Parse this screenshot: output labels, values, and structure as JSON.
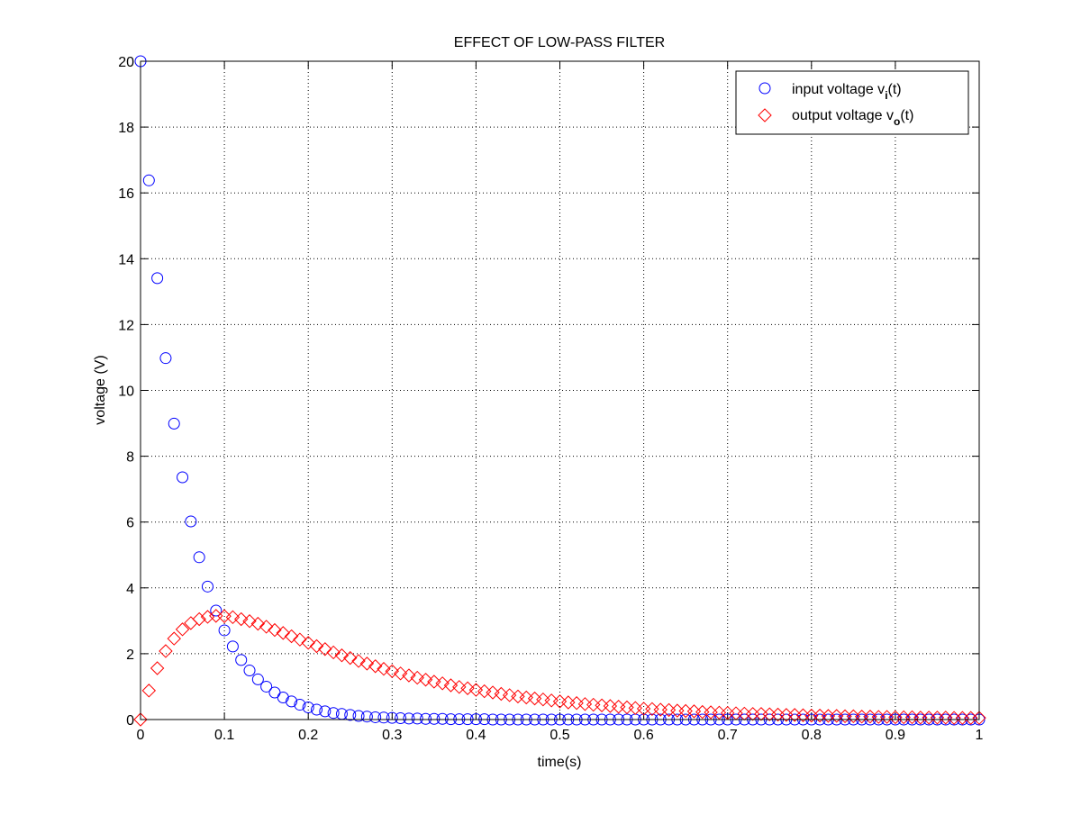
{
  "chart_data": {
    "type": "scatter",
    "title": "EFFECT OF LOW-PASS FILTER",
    "xlabel": "time(s)",
    "ylabel": "voltage (V)",
    "xlim": [
      0,
      1
    ],
    "ylim": [
      0,
      20
    ],
    "grid": true,
    "legend_position": "top-right",
    "xticks": [
      "0",
      "0.1",
      "0.2",
      "0.3",
      "0.4",
      "0.5",
      "0.6",
      "0.7",
      "0.8",
      "0.9",
      "1"
    ],
    "yticks": [
      "0",
      "2",
      "4",
      "6",
      "8",
      "10",
      "12",
      "14",
      "16",
      "18",
      "20"
    ],
    "x_step": 0.01,
    "series": [
      {
        "name": "input voltage v_i(t)",
        "legend": {
          "main": "input voltage v",
          "sub": "i",
          "tail": "(t)"
        },
        "marker": "circle",
        "color": "#0000ff",
        "values": [
          20,
          16.38,
          13.41,
          10.98,
          8.99,
          7.36,
          6.02,
          4.93,
          4.04,
          3.31,
          2.71,
          2.22,
          1.81,
          1.49,
          1.22,
          1.0,
          0.82,
          0.67,
          0.55,
          0.45,
          0.37,
          0.3,
          0.25,
          0.2,
          0.17,
          0.14,
          0.11,
          0.09,
          0.07,
          0.06,
          0.05,
          0.04,
          0.03,
          0.03,
          0.02,
          0.02,
          0.02,
          0.01,
          0.01,
          0.01,
          0.01,
          0.01,
          0,
          0,
          0,
          0,
          0,
          0,
          0,
          0,
          0,
          0,
          0,
          0,
          0,
          0,
          0,
          0,
          0,
          0,
          0,
          0,
          0,
          0,
          0,
          0,
          0,
          0,
          0,
          0,
          0,
          0,
          0,
          0,
          0,
          0,
          0,
          0,
          0,
          0,
          0,
          0,
          0,
          0,
          0,
          0,
          0,
          0,
          0,
          0,
          0,
          0,
          0,
          0,
          0,
          0,
          0,
          0,
          0,
          0,
          0
        ]
      },
      {
        "name": "output voltage v_o(t)",
        "legend": {
          "main": "output voltage v",
          "sub": "o",
          "tail": "(t)"
        },
        "marker": "diamond",
        "color": "#ff0000",
        "values": [
          0,
          0.88,
          1.56,
          2.08,
          2.46,
          2.74,
          2.93,
          3.05,
          3.12,
          3.15,
          3.14,
          3.11,
          3.05,
          2.99,
          2.91,
          2.82,
          2.72,
          2.63,
          2.53,
          2.43,
          2.33,
          2.23,
          2.14,
          2.04,
          1.95,
          1.87,
          1.78,
          1.7,
          1.62,
          1.54,
          1.47,
          1.4,
          1.34,
          1.27,
          1.21,
          1.15,
          1.1,
          1.04,
          0.99,
          0.95,
          0.9,
          0.86,
          0.82,
          0.78,
          0.74,
          0.7,
          0.67,
          0.64,
          0.61,
          0.58,
          0.55,
          0.52,
          0.5,
          0.47,
          0.45,
          0.43,
          0.41,
          0.39,
          0.37,
          0.35,
          0.33,
          0.32,
          0.3,
          0.29,
          0.27,
          0.26,
          0.25,
          0.23,
          0.22,
          0.21,
          0.2,
          0.19,
          0.18,
          0.17,
          0.17,
          0.16,
          0.15,
          0.14,
          0.14,
          0.13,
          0.12,
          0.12,
          0.11,
          0.11,
          0.1,
          0.1,
          0.09,
          0.09,
          0.08,
          0.08,
          0.07,
          0.07,
          0.07,
          0.06,
          0.06,
          0.06,
          0.06,
          0.05,
          0.05,
          0.05,
          0.05
        ]
      }
    ]
  }
}
